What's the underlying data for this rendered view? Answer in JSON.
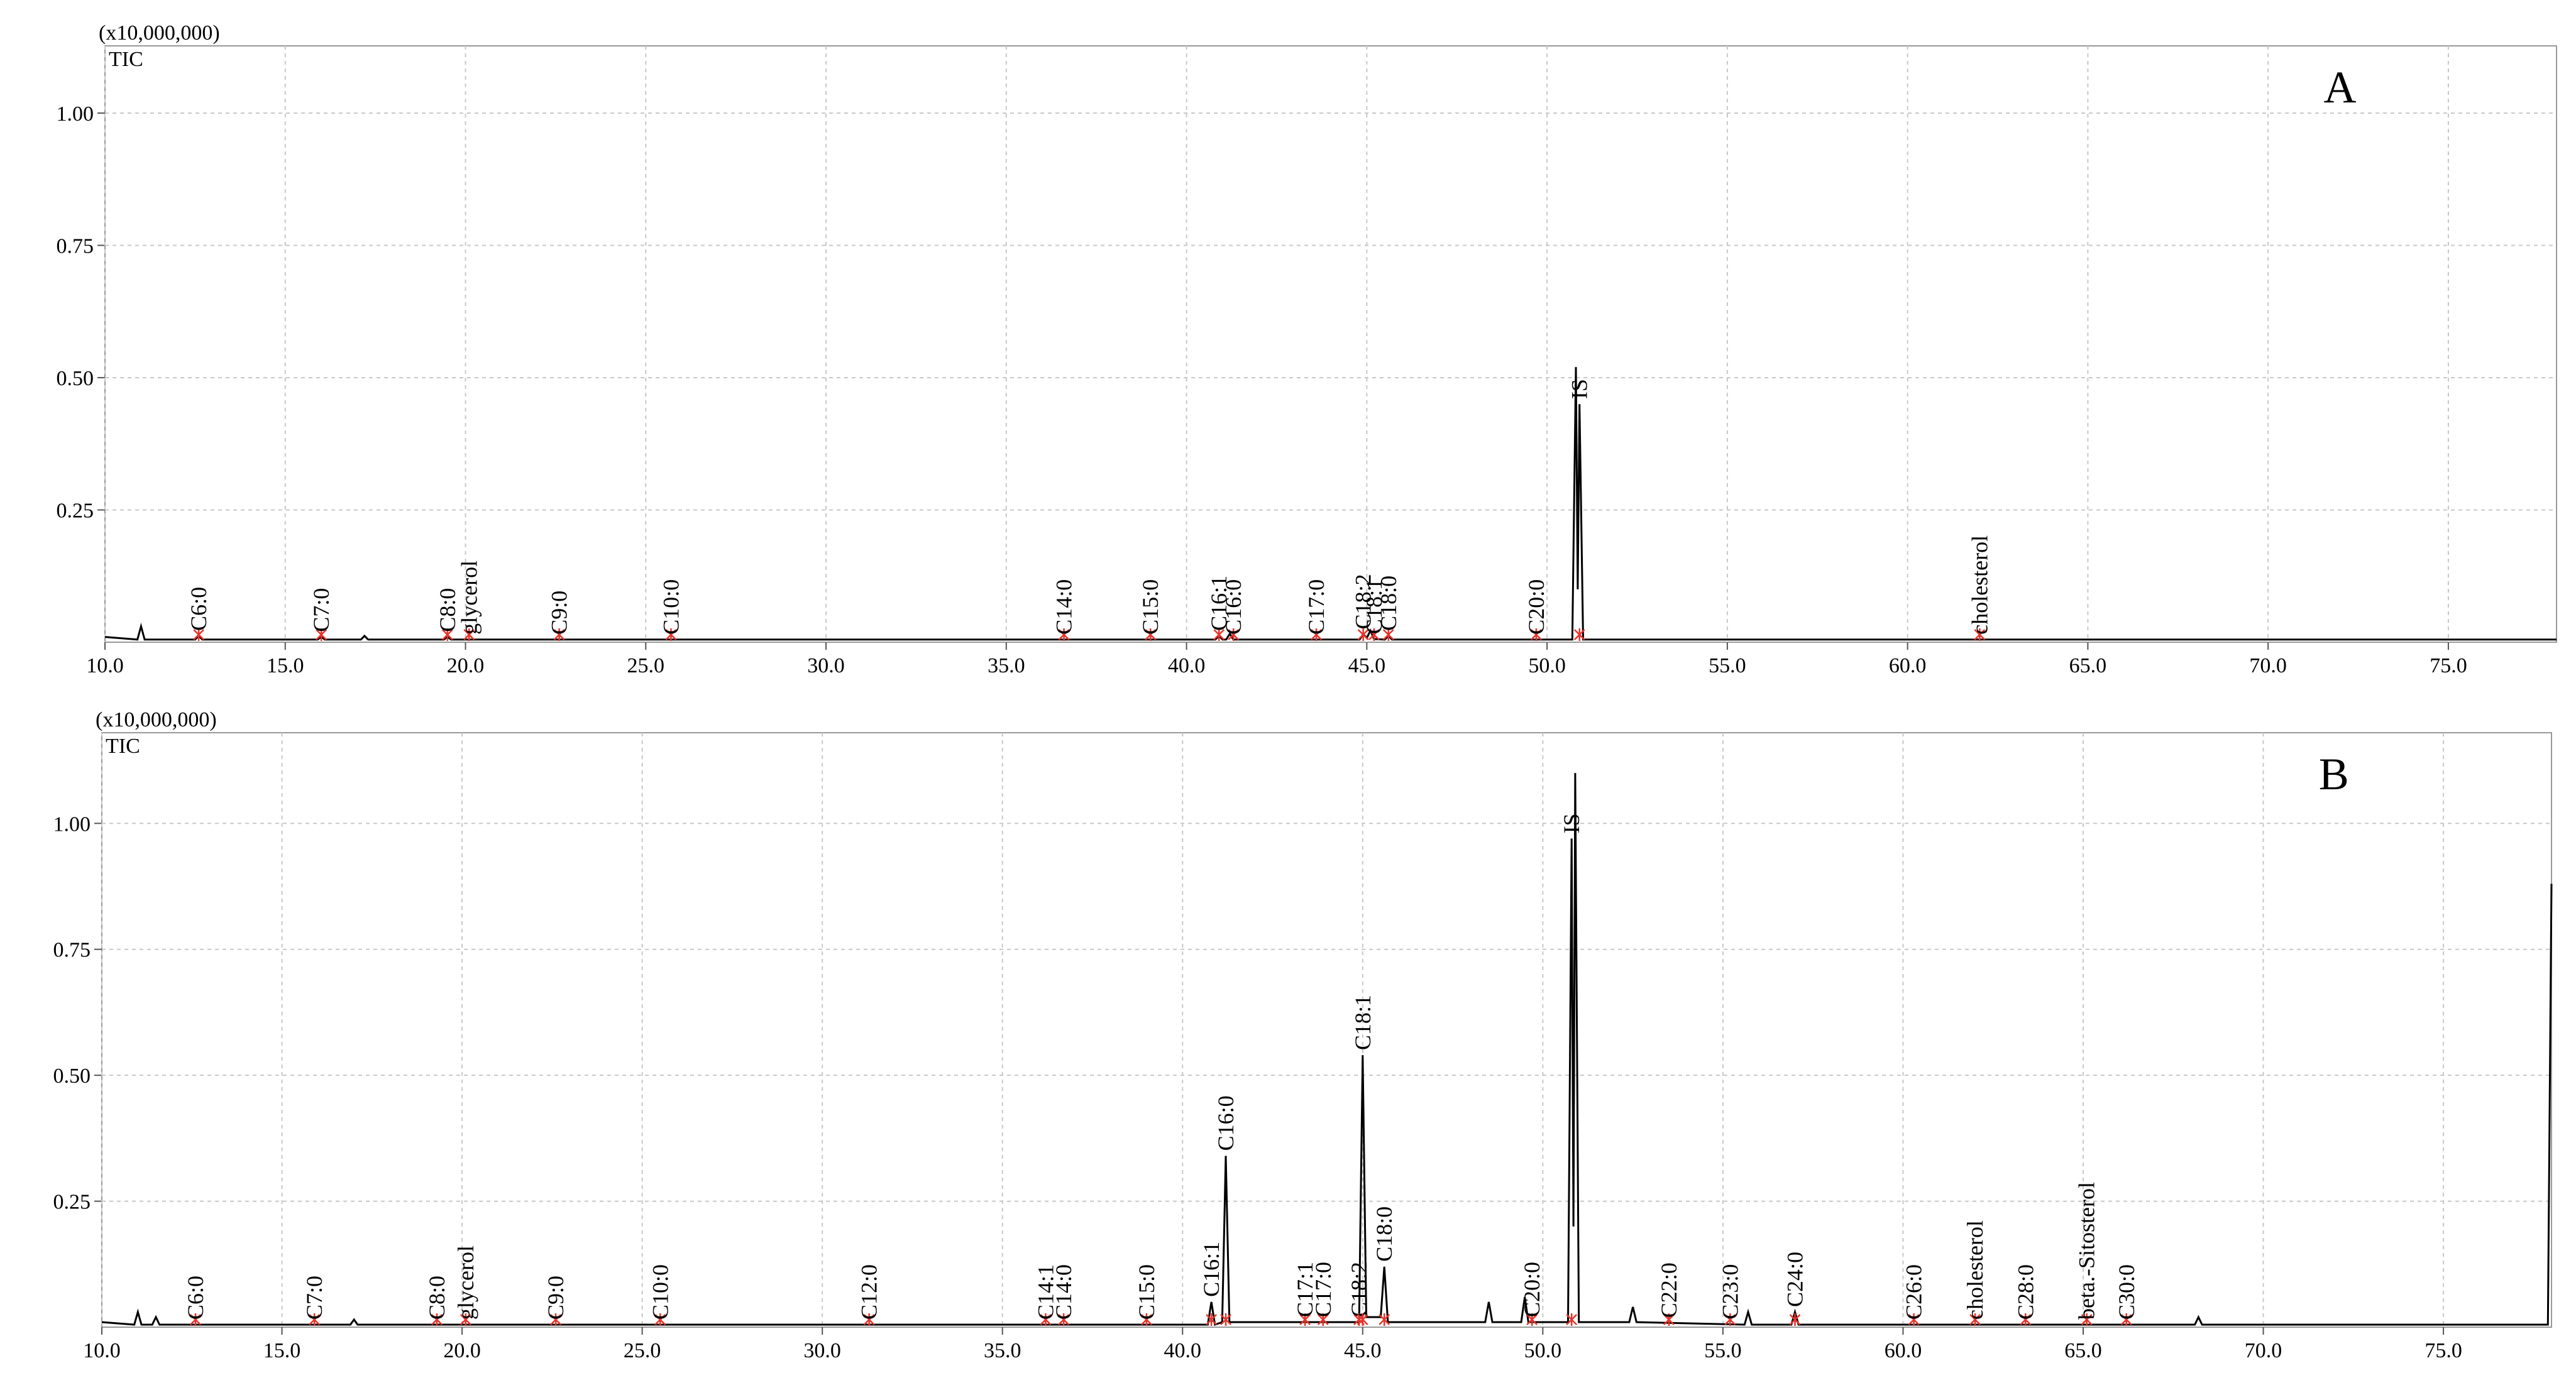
{
  "chart_data": [
    {
      "type": "line",
      "panel": "A",
      "y_unit": "(x10,000,000)",
      "xlim": [
        10,
        78
      ],
      "ylim": [
        0,
        1.127
      ],
      "xticks": [
        {
          "value": 10,
          "label": "10.0"
        },
        {
          "value": 15,
          "label": "15.0"
        },
        {
          "value": 20,
          "label": "20.0"
        },
        {
          "value": 25,
          "label": "25.0"
        },
        {
          "value": 30,
          "label": "30.0"
        },
        {
          "value": 35,
          "label": "35.0"
        },
        {
          "value": 40,
          "label": "40.0"
        },
        {
          "value": 45,
          "label": "45.0"
        },
        {
          "value": 50,
          "label": "50.0"
        },
        {
          "value": 55,
          "label": "55.0"
        },
        {
          "value": 60,
          "label": "60.0"
        },
        {
          "value": 65,
          "label": "65.0"
        },
        {
          "value": 70,
          "label": "70.0"
        },
        {
          "value": 75,
          "label": "75.0"
        }
      ],
      "yticks": [
        {
          "value": 0.25,
          "label": "0.25"
        },
        {
          "value": 0.5,
          "label": "0.50"
        },
        {
          "value": 0.75,
          "label": "0.75"
        },
        {
          "value": 1,
          "label": "1.00"
        }
      ],
      "grid": true,
      "x": [
        10.0,
        10.9,
        11.0,
        11.1,
        12.5,
        12.6,
        12.7,
        15.9,
        16.0,
        16.1,
        17.1,
        17.2,
        17.3,
        19.4,
        19.5,
        19.6,
        40.8,
        40.9,
        41.0,
        41.1,
        41.2,
        41.3,
        44.8,
        44.9,
        45.0,
        45.1,
        45.2,
        45.5,
        45.6,
        45.7,
        50.7,
        50.8,
        50.85,
        50.9,
        51.0,
        78.0
      ],
      "series": [
        {
          "name": "TIC",
          "color": "#000000",
          "values": [
            0.01,
            0.005,
            0.03,
            0.005,
            0.005,
            0.012,
            0.005,
            0.005,
            0.01,
            0.005,
            0.005,
            0.012,
            0.005,
            0.005,
            0.01,
            0.005,
            0.005,
            0.012,
            0.005,
            0.005,
            0.016,
            0.005,
            0.005,
            0.015,
            0.008,
            0.022,
            0.006,
            0.005,
            0.012,
            0.005,
            0.005,
            0.52,
            0.1,
            0.45,
            0.005,
            0.005
          ]
        }
      ],
      "annotations": [
        {
          "text": "C6:0",
          "x": 12.6
        },
        {
          "text": "C7:0",
          "x": 16.0
        },
        {
          "text": "C8:0",
          "x": 19.5
        },
        {
          "text": "glycerol",
          "x": 20.1
        },
        {
          "text": "C9:0",
          "x": 22.6
        },
        {
          "text": "C10:0",
          "x": 25.7
        },
        {
          "text": "C14:0",
          "x": 36.6
        },
        {
          "text": "C15:0",
          "x": 39.0
        },
        {
          "text": "C16:1",
          "x": 40.9
        },
        {
          "text": "C16:0",
          "x": 41.3
        },
        {
          "text": "C17:0",
          "x": 43.6
        },
        {
          "text": "C18:2",
          "x": 44.9
        },
        {
          "text": "C18:1",
          "x": 45.2
        },
        {
          "text": "C18:0",
          "x": 45.6
        },
        {
          "text": "C20:0",
          "x": 49.7
        },
        {
          "text": "IS",
          "x": 50.9
        },
        {
          "text": "cholesterol",
          "x": 62.0
        }
      ]
    },
    {
      "type": "line",
      "panel": "B",
      "y_unit": "(x10,000,000)",
      "xlim": [
        10,
        78
      ],
      "ylim": [
        0,
        1.18
      ],
      "xticks": [
        {
          "value": 10,
          "label": "10.0"
        },
        {
          "value": 15,
          "label": "15.0"
        },
        {
          "value": 20,
          "label": "20.0"
        },
        {
          "value": 25,
          "label": "25.0"
        },
        {
          "value": 30,
          "label": "30.0"
        },
        {
          "value": 35,
          "label": "35.0"
        },
        {
          "value": 40,
          "label": "40.0"
        },
        {
          "value": 45,
          "label": "45.0"
        },
        {
          "value": 50,
          "label": "50.0"
        },
        {
          "value": 55,
          "label": "55.0"
        },
        {
          "value": 60,
          "label": "60.0"
        },
        {
          "value": 65,
          "label": "65.0"
        },
        {
          "value": 70,
          "label": "70.0"
        },
        {
          "value": 75,
          "label": "75.0"
        }
      ],
      "yticks": [
        {
          "value": 0.25,
          "label": "0.25"
        },
        {
          "value": 0.5,
          "label": "0.50"
        },
        {
          "value": 0.75,
          "label": "0.75"
        },
        {
          "value": 1,
          "label": "1.00"
        }
      ],
      "grid": true,
      "x": [
        10.0,
        10.9,
        11.0,
        11.1,
        11.4,
        11.5,
        11.6,
        16.9,
        17.0,
        17.1,
        40.7,
        40.8,
        40.9,
        41.1,
        41.2,
        41.3,
        44.9,
        45.0,
        45.1,
        45.5,
        45.6,
        45.7,
        48.4,
        48.5,
        48.6,
        49.4,
        49.5,
        49.6,
        50.7,
        50.8,
        50.85,
        50.9,
        51.0,
        52.4,
        52.5,
        52.6,
        55.6,
        55.7,
        55.8,
        56.9,
        57.0,
        57.1,
        68.1,
        68.2,
        68.3,
        77.9,
        78.0
      ],
      "series": [
        {
          "name": "TIC",
          "color": "#000000",
          "values": [
            0.01,
            0.005,
            0.03,
            0.005,
            0.005,
            0.02,
            0.005,
            0.005,
            0.015,
            0.005,
            0.005,
            0.05,
            0.005,
            0.01,
            0.34,
            0.01,
            0.01,
            0.54,
            0.02,
            0.02,
            0.12,
            0.01,
            0.01,
            0.05,
            0.01,
            0.01,
            0.06,
            0.01,
            0.01,
            0.97,
            0.2,
            1.1,
            0.01,
            0.01,
            0.04,
            0.01,
            0.005,
            0.03,
            0.005,
            0.005,
            0.03,
            0.005,
            0.005,
            0.02,
            0.005,
            0.005,
            0.88
          ]
        }
      ],
      "annotations": [
        {
          "text": "C6:0",
          "x": 12.6
        },
        {
          "text": "C7:0",
          "x": 15.9
        },
        {
          "text": "C8:0",
          "x": 19.3
        },
        {
          "text": "glycerol",
          "x": 20.1
        },
        {
          "text": "C9:0",
          "x": 22.6
        },
        {
          "text": "C10:0",
          "x": 25.5
        },
        {
          "text": "C12:0",
          "x": 31.3
        },
        {
          "text": "C14:1",
          "x": 36.2
        },
        {
          "text": "C14:0",
          "x": 36.7
        },
        {
          "text": "C15:0",
          "x": 39.0
        },
        {
          "text": "C16:1",
          "x": 40.8
        },
        {
          "text": "C16:0",
          "x": 41.2
        },
        {
          "text": "C17:1",
          "x": 43.4
        },
        {
          "text": "C17:0",
          "x": 43.9
        },
        {
          "text": "C18:2",
          "x": 44.9
        },
        {
          "text": "C18:1",
          "x": 45.0
        },
        {
          "text": "C18:0",
          "x": 45.6
        },
        {
          "text": "C20:0",
          "x": 49.7
        },
        {
          "text": "IS",
          "x": 50.8
        },
        {
          "text": "C22:0",
          "x": 53.5
        },
        {
          "text": "C23:0",
          "x": 55.2
        },
        {
          "text": "C24:0",
          "x": 57.0
        },
        {
          "text": "C26:0",
          "x": 60.3
        },
        {
          "text": "cholesterol",
          "x": 62.0
        },
        {
          "text": "C28:0",
          "x": 63.4
        },
        {
          "text": "beta.-Sitosterol",
          "x": 65.1
        },
        {
          "text": "C30:0",
          "x": 66.2
        }
      ]
    }
  ]
}
